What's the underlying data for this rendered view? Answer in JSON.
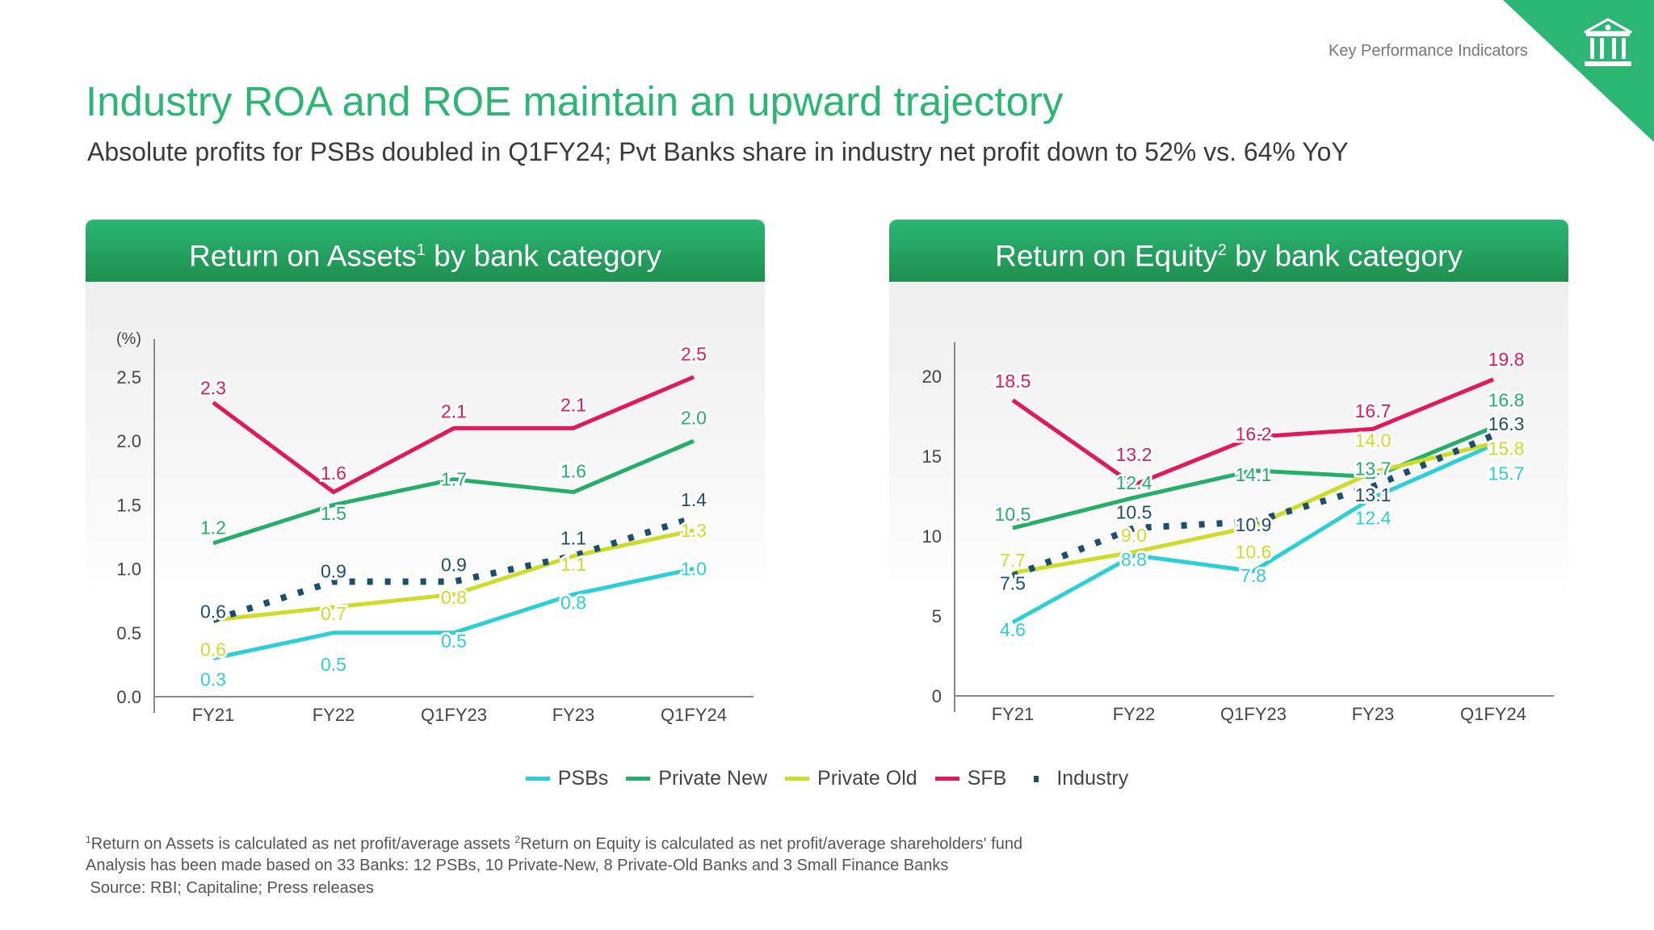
{
  "header": {
    "section": "Key Performance Indicators",
    "title": "Industry ROA and ROE maintain an upward trajectory",
    "subtitle": "Absolute profits for PSBs doubled in Q1FY24; Pvt Banks share in industry net profit down to 52% vs. 64% YoY",
    "icon": "bank-building-icon",
    "accent": "#2bb673"
  },
  "legend": [
    {
      "name": "PSBs",
      "color": "#2ccfd6",
      "style": "solid"
    },
    {
      "name": "Private New",
      "color": "#25ad6a",
      "style": "solid"
    },
    {
      "name": "Private Old",
      "color": "#cddc29",
      "style": "solid"
    },
    {
      "name": "SFB",
      "color": "#e0195a",
      "style": "solid"
    },
    {
      "name": "Industry",
      "color": "#1d4e6e",
      "style": "dotted"
    }
  ],
  "chart_data": [
    {
      "type": "line",
      "title": "Return on Assets",
      "title_sup": "1",
      "title_suffix": " by bank category",
      "ylabel": "(%)",
      "ylim": [
        0,
        2.5
      ],
      "yticks": [
        "0.0",
        "0.5",
        "1.0",
        "1.5",
        "2.0",
        "2.5"
      ],
      "categories": [
        "FY21",
        "FY22",
        "Q1FY23",
        "FY23",
        "Q1FY24"
      ],
      "series": [
        {
          "name": "PSBs",
          "values": [
            0.3,
            0.5,
            0.5,
            0.8,
            1.0
          ]
        },
        {
          "name": "Private New",
          "values": [
            1.2,
            1.5,
            1.7,
            1.6,
            2.0
          ]
        },
        {
          "name": "Private Old",
          "values": [
            0.6,
            0.7,
            0.8,
            1.1,
            1.3
          ]
        },
        {
          "name": "SFB",
          "values": [
            2.3,
            1.6,
            2.1,
            2.1,
            2.5
          ]
        },
        {
          "name": "Industry",
          "values": [
            0.6,
            0.9,
            0.9,
            1.1,
            1.4
          ]
        }
      ]
    },
    {
      "type": "line",
      "title": "Return on Equity",
      "title_sup": "2",
      "title_suffix": " by bank category",
      "ylabel": "",
      "ylim": [
        0,
        20
      ],
      "yticks": [
        "0",
        "5",
        "10",
        "15",
        "20"
      ],
      "categories": [
        "FY21",
        "FY22",
        "Q1FY23",
        "FY23",
        "Q1FY24"
      ],
      "series": [
        {
          "name": "PSBs",
          "values": [
            4.6,
            8.8,
            7.8,
            12.4,
            15.7
          ]
        },
        {
          "name": "Private New",
          "values": [
            10.5,
            12.4,
            14.1,
            13.7,
            16.8
          ]
        },
        {
          "name": "Private Old",
          "values": [
            7.7,
            9.0,
            10.6,
            14.0,
            15.8
          ]
        },
        {
          "name": "SFB",
          "values": [
            18.5,
            13.2,
            16.2,
            16.7,
            19.8
          ]
        },
        {
          "name": "Industry",
          "values": [
            7.5,
            10.5,
            10.9,
            13.1,
            16.3
          ]
        }
      ]
    }
  ],
  "footnotes": {
    "sup1": "1",
    "note1": "Return on Assets is calculated as net profit/average assets ",
    "sup2": "2",
    "note2": "Return on Equity is calculated as net profit/average shareholders' fund",
    "analysis": "Analysis has been made based on 33 Banks: 12 PSBs, 10 Private-New, 8 Private-Old Banks and 3 Small Finance Banks",
    "source": " Source: RBI; Capitaline; Press releases"
  }
}
